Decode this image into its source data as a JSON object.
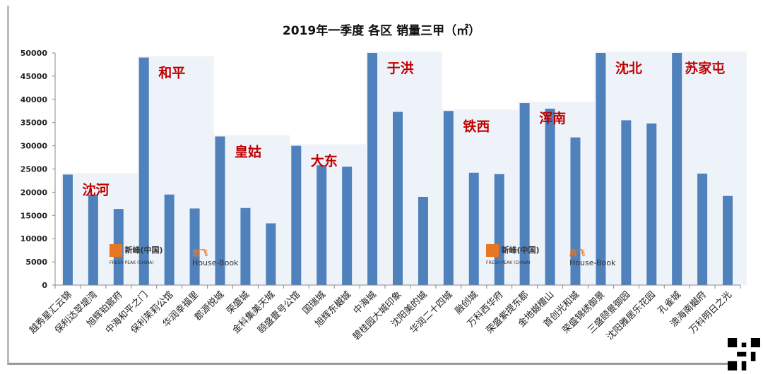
{
  "chart_data": {
    "type": "bar",
    "title": "2019年一季度  各区  销量三甲（㎡）",
    "xlabel": "",
    "ylabel": "",
    "ylim": [
      0,
      50000
    ],
    "yticks": [
      0,
      5000,
      10000,
      15000,
      20000,
      25000,
      30000,
      35000,
      40000,
      45000,
      50000
    ],
    "grid": false,
    "bar_color": "#4f81bd",
    "group_band_color": "#eef3f9",
    "group_label_color": "#c00000",
    "categories": [
      "越秀星汇云锦",
      "保利达翠堤湾",
      "旭辉铂宸府",
      "中海和平之门",
      "保利茉莉公馆",
      "华润幸福里",
      "郡源悦城",
      "荣盛城",
      "金科集美天城",
      "颐盛壹号公馆",
      "国瑞城",
      "旭辉东樾城",
      "中海城",
      "碧桂园大城印象",
      "沈阳美的城",
      "华润二十四城",
      "融创城",
      "万科西华府",
      "荣盛紫提东郡",
      "金地樾檀山",
      "首创光和城",
      "荣盛锦绣御景",
      "三盛颐景御园",
      "沈阳雅居乐花园",
      "孔雀城",
      "澳海南樾府",
      "万科明日之光"
    ],
    "values": [
      23800,
      19500,
      16400,
      49000,
      19500,
      16500,
      32000,
      16600,
      13300,
      30000,
      25800,
      25500,
      50000,
      37300,
      19000,
      37500,
      24200,
      23900,
      39200,
      38000,
      31800,
      50000,
      35500,
      34800,
      50000,
      24000,
      19200
    ],
    "groups": [
      {
        "name": "沈河",
        "start": 0,
        "count": 3
      },
      {
        "name": "和平",
        "start": 3,
        "count": 3
      },
      {
        "name": "皇姑",
        "start": 6,
        "count": 3
      },
      {
        "name": "大东",
        "start": 9,
        "count": 3
      },
      {
        "name": "于洪",
        "start": 12,
        "count": 3
      },
      {
        "name": "铁西",
        "start": 15,
        "count": 3
      },
      {
        "name": "浑南",
        "start": 18,
        "count": 3
      },
      {
        "name": "沈北",
        "start": 21,
        "count": 3
      },
      {
        "name": "苏家屯",
        "start": 24,
        "count": 3
      }
    ]
  },
  "watermarks": {
    "logo1_text": "新峰(中国)",
    "logo1_sub": "FRESH PEAK (CHINA)",
    "logo2_text": "房飞",
    "logo2_sub": "House-Book"
  }
}
